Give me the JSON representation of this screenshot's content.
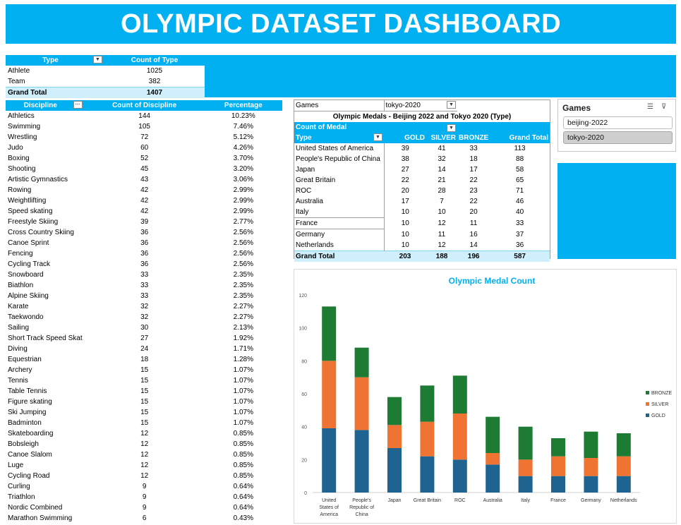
{
  "title": "OLYMPIC DATASET DASHBOARD",
  "colors": {
    "accent": "#00b0f0",
    "gold": "#1f6391",
    "silver": "#ef7434",
    "bronze": "#1e7b34"
  },
  "type_pivot": {
    "headers": [
      "Type",
      "Count of Type"
    ],
    "rows": [
      [
        "Athlete",
        "1025"
      ],
      [
        "Team",
        "382"
      ]
    ],
    "total": [
      "Grand Total",
      "1407"
    ]
  },
  "discipline_pivot": {
    "headers": [
      "Discipline",
      "Count of Discipline",
      "Percentage"
    ],
    "rows": [
      [
        "Athletics",
        "144",
        "10.23%"
      ],
      [
        "Swimming",
        "105",
        "7.46%"
      ],
      [
        "Wrestling",
        "72",
        "5.12%"
      ],
      [
        "Judo",
        "60",
        "4.26%"
      ],
      [
        "Boxing",
        "52",
        "3.70%"
      ],
      [
        "Shooting",
        "45",
        "3.20%"
      ],
      [
        "Artistic Gymnastics",
        "43",
        "3.06%"
      ],
      [
        "Rowing",
        "42",
        "2.99%"
      ],
      [
        "Weightlifting",
        "42",
        "2.99%"
      ],
      [
        "Speed skating",
        "42",
        "2.99%"
      ],
      [
        "Freestyle Skiing",
        "39",
        "2.77%"
      ],
      [
        "Cross Country Skiing",
        "36",
        "2.56%"
      ],
      [
        "Canoe Sprint",
        "36",
        "2.56%"
      ],
      [
        "Fencing",
        "36",
        "2.56%"
      ],
      [
        "Cycling Track",
        "36",
        "2.56%"
      ],
      [
        "Snowboard",
        "33",
        "2.35%"
      ],
      [
        "Biathlon",
        "33",
        "2.35%"
      ],
      [
        "Alpine Skiing",
        "33",
        "2.35%"
      ],
      [
        "Karate",
        "32",
        "2.27%"
      ],
      [
        "Taekwondo",
        "32",
        "2.27%"
      ],
      [
        "Sailing",
        "30",
        "2.13%"
      ],
      [
        "Short Track Speed Skat",
        "27",
        "1.92%"
      ],
      [
        "Diving",
        "24",
        "1.71%"
      ],
      [
        "Equestrian",
        "18",
        "1.28%"
      ],
      [
        "Archery",
        "15",
        "1.07%"
      ],
      [
        "Tennis",
        "15",
        "1.07%"
      ],
      [
        "Table Tennis",
        "15",
        "1.07%"
      ],
      [
        "Figure skating",
        "15",
        "1.07%"
      ],
      [
        "Ski Jumping",
        "15",
        "1.07%"
      ],
      [
        "Badminton",
        "15",
        "1.07%"
      ],
      [
        "Skateboarding",
        "12",
        "0.85%"
      ],
      [
        "Bobsleigh",
        "12",
        "0.85%"
      ],
      [
        "Canoe Slalom",
        "12",
        "0.85%"
      ],
      [
        "Luge",
        "12",
        "0.85%"
      ],
      [
        "Cycling Road",
        "12",
        "0.85%"
      ],
      [
        "Curling",
        "9",
        "0.64%"
      ],
      [
        "Triathlon",
        "9",
        "0.64%"
      ],
      [
        "Nordic Combined",
        "9",
        "0.64%"
      ],
      [
        "Marathon Swimming",
        "6",
        "0.43%"
      ]
    ]
  },
  "medal_pivot": {
    "filter_label": "Games",
    "filter_value": "tokyo-2020",
    "title": "Olympic Medals - Beijing 2022 and Tokyo 2020 (Type)",
    "value_label": "Count of Medal",
    "headers": [
      "Type",
      "GOLD",
      "SILVER",
      "BRONZE",
      "Grand Total"
    ],
    "rows": [
      [
        "United States of America",
        "39",
        "41",
        "33",
        "113"
      ],
      [
        "People's Republic of China",
        "38",
        "32",
        "18",
        "88"
      ],
      [
        "Japan",
        "27",
        "14",
        "17",
        "58"
      ],
      [
        "Great Britain",
        "22",
        "21",
        "22",
        "65"
      ],
      [
        "ROC",
        "20",
        "28",
        "23",
        "71"
      ],
      [
        "Australia",
        "17",
        "7",
        "22",
        "46"
      ],
      [
        "Italy",
        "10",
        "10",
        "20",
        "40"
      ],
      [
        "France",
        "10",
        "12",
        "11",
        "33"
      ],
      [
        "Germany",
        "10",
        "11",
        "16",
        "37"
      ],
      [
        "Netherlands",
        "10",
        "12",
        "14",
        "36"
      ]
    ],
    "total": [
      "Grand Total",
      "203",
      "188",
      "196",
      "587"
    ]
  },
  "slicer": {
    "title": "Games",
    "items": [
      {
        "label": "beijing-2022",
        "selected": false
      },
      {
        "label": "tokyo-2020",
        "selected": true
      }
    ]
  },
  "chart_data": {
    "type": "bar",
    "stacked": true,
    "title": "Olympic Medal Count",
    "categories": [
      "United States of America",
      "People's Republic of China",
      "Japan",
      "Great Britain",
      "ROC",
      "Australia",
      "Italy",
      "France",
      "Germany",
      "Netherlands"
    ],
    "category_labels": [
      [
        "United",
        "States of",
        "America"
      ],
      [
        "People's",
        "Republic of",
        "China"
      ],
      [
        "Japan"
      ],
      [
        "Great Britain"
      ],
      [
        "ROC"
      ],
      [
        "Australia"
      ],
      [
        "Italy"
      ],
      [
        "France"
      ],
      [
        "Germany"
      ],
      [
        "Netherlands"
      ]
    ],
    "series": [
      {
        "name": "GOLD",
        "color": "#1f6391",
        "values": [
          39,
          38,
          27,
          22,
          20,
          17,
          10,
          10,
          10,
          10
        ]
      },
      {
        "name": "SILVER",
        "color": "#ef7434",
        "values": [
          41,
          32,
          14,
          21,
          28,
          7,
          10,
          12,
          11,
          12
        ]
      },
      {
        "name": "BRONZE",
        "color": "#1e7b34",
        "values": [
          33,
          18,
          17,
          22,
          23,
          22,
          20,
          11,
          16,
          14
        ]
      }
    ],
    "ylim": [
      0,
      120
    ],
    "yticks": [
      0,
      20,
      40,
      60,
      80,
      100,
      120
    ],
    "legend": "right",
    "grid": false
  }
}
